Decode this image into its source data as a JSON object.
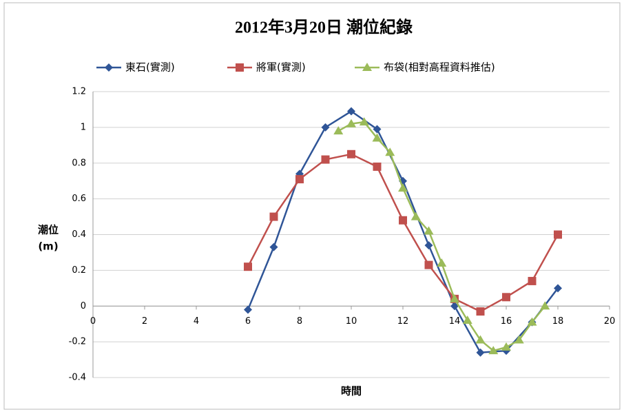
{
  "chart_data": {
    "type": "line",
    "title": "2012年3月20日 潮位紀錄",
    "xlabel": "時間",
    "ylabel": [
      "潮位",
      "(m)"
    ],
    "xlim": [
      0,
      20
    ],
    "xticks": [
      0,
      2,
      4,
      6,
      8,
      10,
      12,
      14,
      16,
      18,
      20
    ],
    "ylim": [
      -0.4,
      1.2
    ],
    "yticks": [
      1.2,
      1,
      0.8,
      0.6,
      0.4,
      0.2,
      0,
      -0.2,
      -0.4
    ],
    "grid": true,
    "legend": "top",
    "series": [
      {
        "name": "東石(實測)",
        "color": "#2f5597",
        "marker": "diamond",
        "x": [
          6,
          7,
          8,
          9,
          10,
          11,
          12,
          13,
          14,
          15,
          16,
          17,
          18
        ],
        "values": [
          -0.02,
          0.33,
          0.74,
          1.0,
          1.09,
          0.99,
          0.7,
          0.34,
          0.0,
          -0.26,
          -0.25,
          -0.09,
          0.1
        ]
      },
      {
        "name": "將軍(實測)",
        "color": "#c0504d",
        "marker": "square",
        "x": [
          6,
          7,
          8,
          9,
          10,
          11,
          12,
          13,
          14,
          15,
          16,
          17,
          18
        ],
        "values": [
          0.22,
          0.5,
          0.71,
          0.82,
          0.85,
          0.78,
          0.48,
          0.23,
          0.04,
          -0.03,
          0.05,
          0.14,
          0.4
        ]
      },
      {
        "name": "布袋(相對高程資料推估)",
        "color": "#9bbb59",
        "marker": "triangle",
        "x": [
          9.5,
          10,
          10.5,
          11,
          11.5,
          12,
          12.5,
          13,
          13.5,
          14,
          14.5,
          15,
          15.5,
          16,
          16.5,
          17,
          17.5
        ],
        "values": [
          0.98,
          1.02,
          1.03,
          0.94,
          0.86,
          0.66,
          0.5,
          0.42,
          0.24,
          0.04,
          -0.08,
          -0.19,
          -0.25,
          -0.23,
          -0.19,
          -0.09,
          0.0
        ]
      }
    ]
  }
}
